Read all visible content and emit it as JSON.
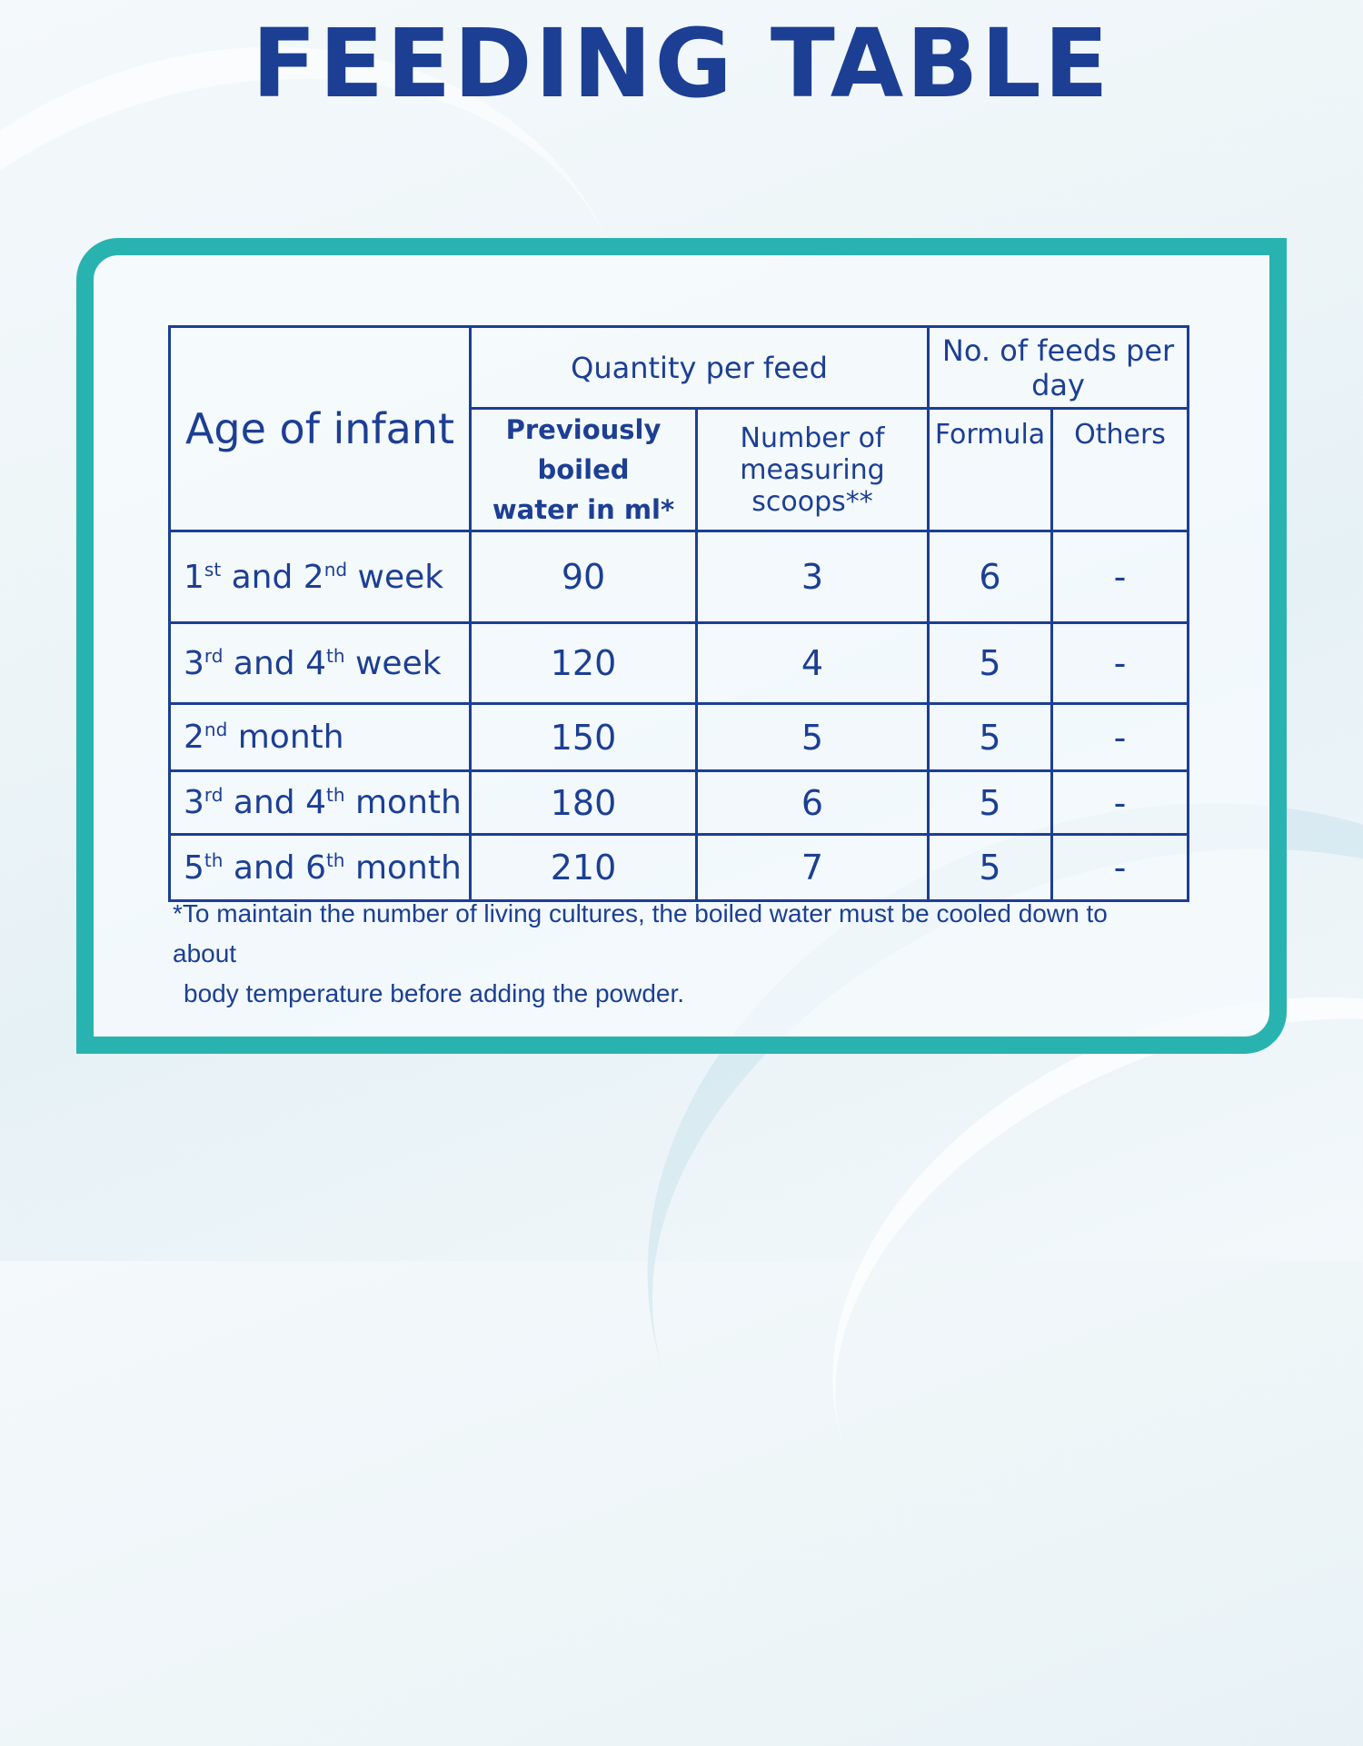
{
  "title": "FEEDING TABLE",
  "colors": {
    "brand_blue": "#1c3f94",
    "frame_teal": "#29b3b0"
  },
  "table": {
    "header_age": "Age of infant",
    "header_quantity": "Quantity per feed",
    "header_feeds": "No. of feeds per day",
    "sub_water_line1": "Previously boiled",
    "sub_water_line2": "water in ml*",
    "sub_scoops_line1": "Number of",
    "sub_scoops_line2": "measuring scoops**",
    "sub_formula": "Formula",
    "sub_others": "Others",
    "rows": [
      {
        "age": [
          {
            "n": "1",
            "s": "st"
          },
          {
            "t": " and "
          },
          {
            "n": "2",
            "s": "nd"
          },
          {
            "t": " week"
          }
        ],
        "water": "90",
        "scoops": "3",
        "formula": "6",
        "others": "-"
      },
      {
        "age": [
          {
            "n": "3",
            "s": "rd"
          },
          {
            "t": " and "
          },
          {
            "n": "4",
            "s": "th"
          },
          {
            "t": " week"
          }
        ],
        "water": "120",
        "scoops": "4",
        "formula": "5",
        "others": "-"
      },
      {
        "age": [
          {
            "n": "2",
            "s": "nd"
          },
          {
            "t": " month"
          }
        ],
        "water": "150",
        "scoops": "5",
        "formula": "5",
        "others": "-"
      },
      {
        "age": [
          {
            "n": "3",
            "s": "rd"
          },
          {
            "t": " and "
          },
          {
            "n": "4",
            "s": "th"
          },
          {
            "t": " month"
          }
        ],
        "water": "180",
        "scoops": "6",
        "formula": "5",
        "others": "-"
      },
      {
        "age": [
          {
            "n": "5",
            "s": "th"
          },
          {
            "t": " and "
          },
          {
            "n": "6",
            "s": "th"
          },
          {
            "t": " month"
          }
        ],
        "water": "210",
        "scoops": "7",
        "formula": "5",
        "others": "-"
      }
    ]
  },
  "footnote_line1": "*To maintain the number of living cultures, the boiled water must be cooled down to about",
  "footnote_line2": "body temperature  before adding the powder."
}
